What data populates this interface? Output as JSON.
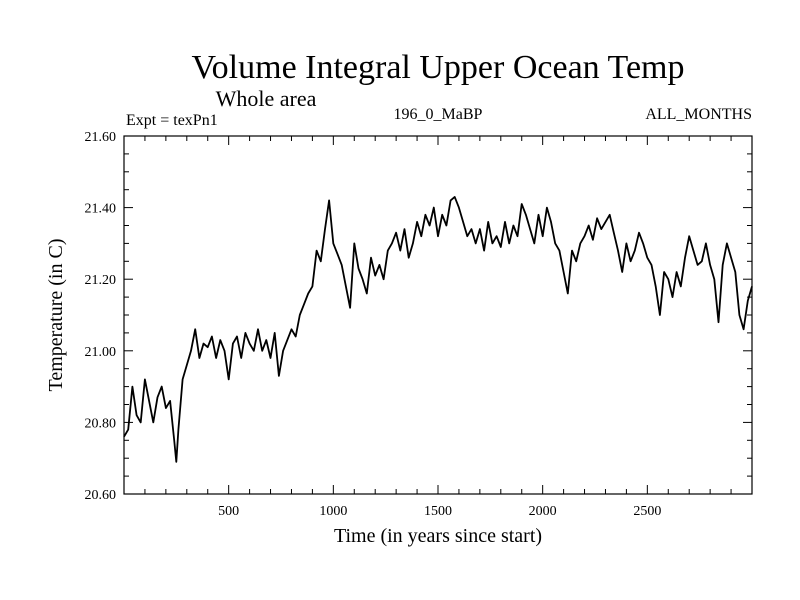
{
  "chart_data": {
    "type": "line",
    "title": "Volume Integral Upper Ocean Temp",
    "subtitle": "Whole area",
    "annotations": {
      "left": "Expt = texPn1",
      "center": "196_0_MaBP",
      "right": "ALL_MONTHS"
    },
    "xlabel": "Time (in years since start)",
    "ylabel": "Temperature (in C)",
    "xlim": [
      0,
      3000
    ],
    "ylim": [
      20.6,
      21.6
    ],
    "x_ticks": [
      500,
      1000,
      1500,
      2000,
      2500
    ],
    "x_tick_labels": [
      "500",
      "1000",
      "1500",
      "2000",
      "2500"
    ],
    "y_ticks": [
      20.6,
      20.8,
      21.0,
      21.2,
      21.4,
      21.6
    ],
    "y_tick_labels": [
      "20.60",
      "20.80",
      "21.00",
      "21.20",
      "21.40",
      "21.60"
    ],
    "grid": false,
    "line_color": "#000000",
    "series": [
      {
        "x": [
          0,
          20,
          40,
          60,
          80,
          100,
          120,
          140,
          160,
          180,
          200,
          220,
          240,
          250,
          260,
          280,
          300,
          320,
          340,
          360,
          380,
          400,
          420,
          440,
          460,
          480,
          500,
          520,
          540,
          560,
          580,
          600,
          620,
          640,
          660,
          680,
          700,
          720,
          740,
          760,
          780,
          800,
          820,
          840,
          860,
          880,
          900,
          920,
          940,
          960,
          980,
          1000,
          1020,
          1040,
          1060,
          1080,
          1100,
          1120,
          1140,
          1160,
          1180,
          1200,
          1220,
          1240,
          1260,
          1280,
          1300,
          1320,
          1340,
          1360,
          1380,
          1400,
          1420,
          1440,
          1460,
          1480,
          1500,
          1520,
          1540,
          1560,
          1580,
          1600,
          1620,
          1640,
          1660,
          1680,
          1700,
          1720,
          1740,
          1760,
          1780,
          1800,
          1820,
          1840,
          1860,
          1880,
          1900,
          1920,
          1940,
          1960,
          1980,
          2000,
          2020,
          2040,
          2060,
          2080,
          2100,
          2120,
          2140,
          2160,
          2180,
          2200,
          2220,
          2240,
          2260,
          2280,
          2300,
          2320,
          2340,
          2360,
          2380,
          2400,
          2420,
          2440,
          2460,
          2480,
          2500,
          2520,
          2540,
          2560,
          2580,
          2600,
          2620,
          2640,
          2660,
          2680,
          2700,
          2720,
          2740,
          2760,
          2780,
          2800,
          2820,
          2840,
          2860,
          2880,
          2900,
          2920,
          2940,
          2960,
          2980,
          3000
        ],
        "y": [
          20.76,
          20.78,
          20.9,
          20.82,
          20.8,
          20.92,
          20.86,
          20.8,
          20.87,
          20.9,
          20.84,
          20.86,
          20.75,
          20.69,
          20.78,
          20.92,
          20.96,
          21.0,
          21.06,
          20.98,
          21.02,
          21.01,
          21.04,
          20.98,
          21.03,
          21.0,
          20.92,
          21.02,
          21.04,
          20.98,
          21.05,
          21.02,
          21.0,
          21.06,
          21.0,
          21.03,
          20.98,
          21.05,
          20.93,
          21.0,
          21.03,
          21.06,
          21.04,
          21.1,
          21.13,
          21.16,
          21.18,
          21.28,
          21.25,
          21.34,
          21.42,
          21.3,
          21.27,
          21.24,
          21.18,
          21.12,
          21.3,
          21.23,
          21.2,
          21.16,
          21.26,
          21.21,
          21.24,
          21.2,
          21.28,
          21.3,
          21.33,
          21.28,
          21.34,
          21.26,
          21.3,
          21.36,
          21.32,
          21.38,
          21.35,
          21.4,
          21.32,
          21.38,
          21.35,
          21.42,
          21.43,
          21.4,
          21.36,
          21.32,
          21.34,
          21.3,
          21.34,
          21.28,
          21.36,
          21.3,
          21.32,
          21.29,
          21.36,
          21.3,
          21.35,
          21.32,
          21.41,
          21.38,
          21.34,
          21.3,
          21.38,
          21.32,
          21.4,
          21.36,
          21.3,
          21.28,
          21.22,
          21.16,
          21.28,
          21.25,
          21.3,
          21.32,
          21.35,
          21.31,
          21.37,
          21.34,
          21.36,
          21.38,
          21.33,
          21.28,
          21.22,
          21.3,
          21.25,
          21.28,
          21.33,
          21.3,
          21.26,
          21.24,
          21.18,
          21.1,
          21.22,
          21.2,
          21.15,
          21.22,
          21.18,
          21.26,
          21.32,
          21.28,
          21.24,
          21.25,
          21.3,
          21.24,
          21.2,
          21.08,
          21.24,
          21.3,
          21.26,
          21.22,
          21.1,
          21.06,
          21.14,
          21.18
        ]
      }
    ]
  }
}
